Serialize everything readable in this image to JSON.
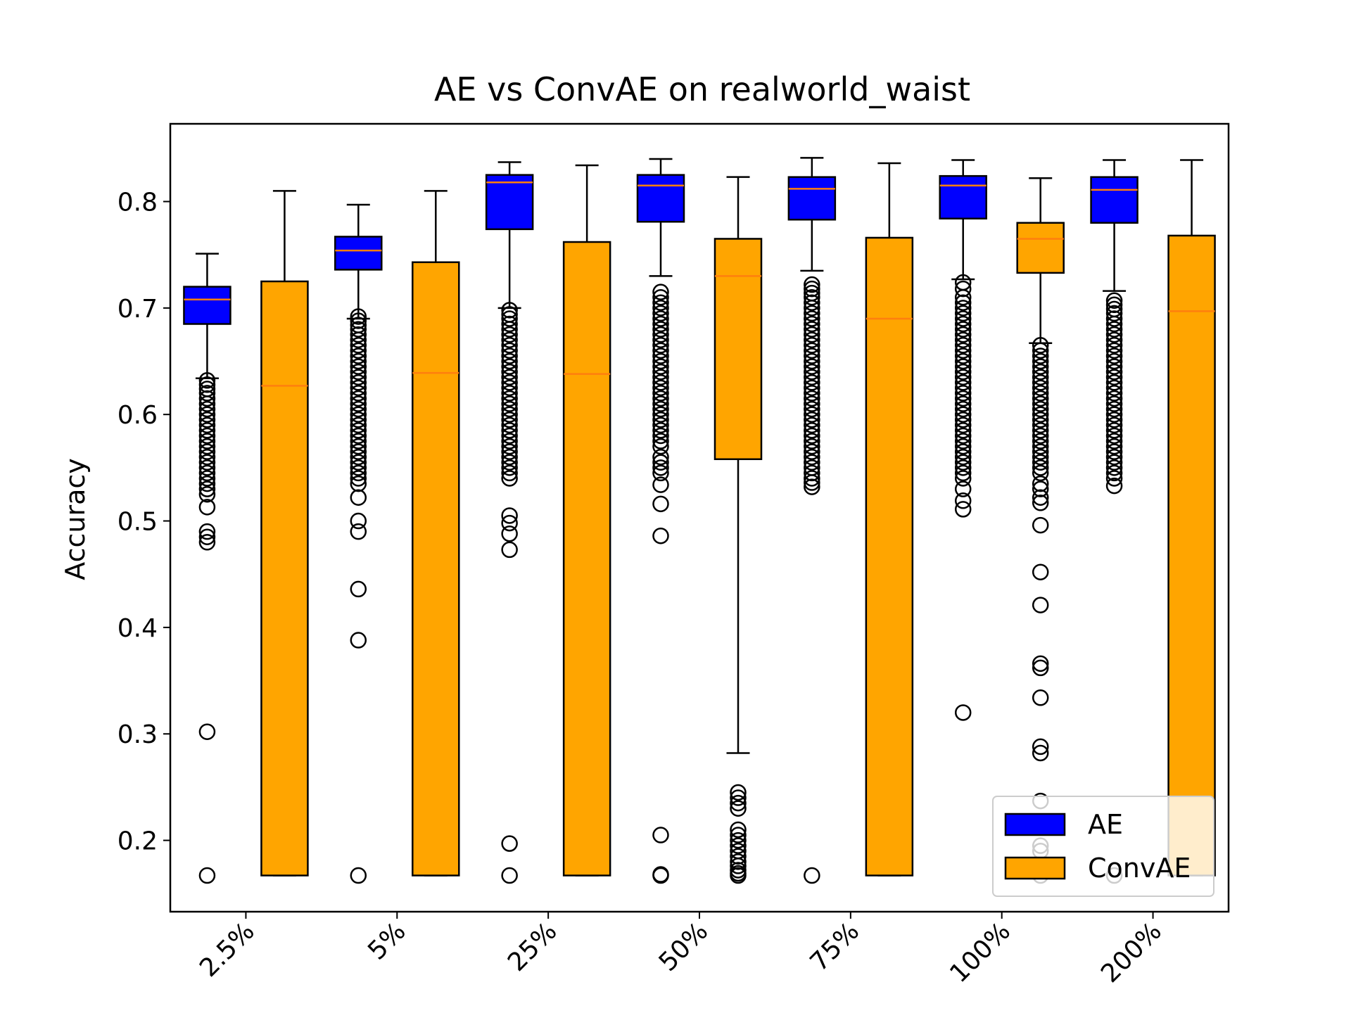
{
  "chart_data": {
    "type": "box",
    "title": "AE vs ConvAE on realworld_waist",
    "xlabel": "",
    "ylabel": "Accuracy",
    "ylim": [
      0.133,
      0.873
    ],
    "yticks": [
      0.2,
      0.3,
      0.4,
      0.5,
      0.6,
      0.7,
      0.8
    ],
    "categories": [
      "2.5%",
      "5%",
      "25%",
      "50%",
      "75%",
      "100%",
      "200%"
    ],
    "legend": {
      "position": "lower right",
      "entries": [
        "AE",
        "ConvAE"
      ]
    },
    "colors": {
      "AE": "#0000ff",
      "ConvAE": "#ffa500",
      "median": "#ff7f0e"
    },
    "series": [
      {
        "name": "AE",
        "boxes": [
          {
            "whislo": 0.634,
            "q1": 0.685,
            "med": 0.708,
            "q3": 0.72,
            "whishi": 0.751,
            "fliers": [
              0.632,
              0.628,
              0.624,
              0.62,
              0.615,
              0.61,
              0.605,
              0.6,
              0.595,
              0.59,
              0.585,
              0.58,
              0.575,
              0.57,
              0.565,
              0.56,
              0.555,
              0.55,
              0.545,
              0.54,
              0.535,
              0.53,
              0.525,
              0.513,
              0.49,
              0.485,
              0.48,
              0.302,
              0.167
            ]
          },
          {
            "whislo": 0.69,
            "q1": 0.736,
            "med": 0.754,
            "q3": 0.767,
            "whishi": 0.797,
            "fliers": [
              0.692,
              0.688,
              0.684,
              0.68,
              0.675,
              0.67,
              0.665,
              0.66,
              0.655,
              0.65,
              0.645,
              0.64,
              0.635,
              0.63,
              0.625,
              0.62,
              0.615,
              0.61,
              0.605,
              0.6,
              0.595,
              0.59,
              0.585,
              0.58,
              0.575,
              0.57,
              0.565,
              0.56,
              0.555,
              0.55,
              0.545,
              0.54,
              0.535,
              0.522,
              0.5,
              0.49,
              0.436,
              0.388,
              0.167
            ]
          },
          {
            "whislo": 0.7,
            "q1": 0.774,
            "med": 0.818,
            "q3": 0.825,
            "whishi": 0.837,
            "fliers": [
              0.698,
              0.694,
              0.69,
              0.685,
              0.68,
              0.675,
              0.67,
              0.665,
              0.66,
              0.655,
              0.65,
              0.645,
              0.64,
              0.635,
              0.63,
              0.625,
              0.62,
              0.615,
              0.61,
              0.605,
              0.6,
              0.595,
              0.59,
              0.585,
              0.58,
              0.575,
              0.57,
              0.565,
              0.56,
              0.555,
              0.55,
              0.545,
              0.54,
              0.505,
              0.498,
              0.488,
              0.473,
              0.197,
              0.167
            ]
          },
          {
            "whislo": 0.73,
            "q1": 0.781,
            "med": 0.815,
            "q3": 0.825,
            "whishi": 0.84,
            "fliers": [
              0.715,
              0.71,
              0.705,
              0.7,
              0.695,
              0.69,
              0.685,
              0.68,
              0.675,
              0.67,
              0.665,
              0.66,
              0.655,
              0.65,
              0.645,
              0.64,
              0.635,
              0.63,
              0.625,
              0.62,
              0.615,
              0.61,
              0.605,
              0.6,
              0.595,
              0.59,
              0.585,
              0.58,
              0.575,
              0.57,
              0.56,
              0.555,
              0.55,
              0.545,
              0.534,
              0.516,
              0.486,
              0.205,
              0.168,
              0.167
            ]
          },
          {
            "whislo": 0.735,
            "q1": 0.783,
            "med": 0.812,
            "q3": 0.823,
            "whishi": 0.841,
            "fliers": [
              0.722,
              0.718,
              0.714,
              0.71,
              0.705,
              0.7,
              0.695,
              0.69,
              0.685,
              0.68,
              0.675,
              0.67,
              0.665,
              0.66,
              0.655,
              0.65,
              0.645,
              0.64,
              0.635,
              0.63,
              0.625,
              0.62,
              0.615,
              0.61,
              0.605,
              0.6,
              0.595,
              0.59,
              0.585,
              0.58,
              0.575,
              0.57,
              0.565,
              0.56,
              0.555,
              0.55,
              0.545,
              0.54,
              0.536,
              0.532,
              0.167
            ]
          },
          {
            "whislo": 0.727,
            "q1": 0.784,
            "med": 0.815,
            "q3": 0.824,
            "whishi": 0.839,
            "fliers": [
              0.724,
              0.718,
              0.71,
              0.705,
              0.7,
              0.695,
              0.69,
              0.685,
              0.68,
              0.675,
              0.67,
              0.665,
              0.66,
              0.655,
              0.65,
              0.645,
              0.64,
              0.635,
              0.63,
              0.625,
              0.62,
              0.615,
              0.61,
              0.605,
              0.6,
              0.595,
              0.59,
              0.585,
              0.58,
              0.575,
              0.57,
              0.565,
              0.56,
              0.555,
              0.55,
              0.545,
              0.54,
              0.53,
              0.519,
              0.511,
              0.32
            ]
          },
          {
            "whislo": 0.716,
            "q1": 0.78,
            "med": 0.811,
            "q3": 0.823,
            "whishi": 0.839,
            "fliers": [
              0.707,
              0.703,
              0.699,
              0.695,
              0.69,
              0.685,
              0.68,
              0.675,
              0.67,
              0.665,
              0.66,
              0.655,
              0.65,
              0.645,
              0.64,
              0.635,
              0.63,
              0.625,
              0.62,
              0.615,
              0.61,
              0.605,
              0.6,
              0.595,
              0.59,
              0.585,
              0.58,
              0.575,
              0.57,
              0.565,
              0.56,
              0.555,
              0.55,
              0.545,
              0.54,
              0.533,
              0.167
            ]
          }
        ]
      },
      {
        "name": "ConvAE",
        "boxes": [
          {
            "whislo": 0.167,
            "q1": 0.167,
            "med": 0.627,
            "q3": 0.725,
            "whishi": 0.81,
            "fliers": []
          },
          {
            "whislo": 0.167,
            "q1": 0.167,
            "med": 0.639,
            "q3": 0.743,
            "whishi": 0.81,
            "fliers": []
          },
          {
            "whislo": 0.167,
            "q1": 0.167,
            "med": 0.638,
            "q3": 0.762,
            "whishi": 0.834,
            "fliers": []
          },
          {
            "whislo": 0.282,
            "q1": 0.558,
            "med": 0.73,
            "q3": 0.765,
            "whishi": 0.823,
            "fliers": [
              0.245,
              0.24,
              0.235,
              0.23,
              0.21,
              0.205,
              0.2,
              0.195,
              0.19,
              0.185,
              0.18,
              0.176,
              0.172,
              0.169,
              0.167
            ]
          },
          {
            "whislo": 0.167,
            "q1": 0.167,
            "med": 0.69,
            "q3": 0.766,
            "whishi": 0.836,
            "fliers": []
          },
          {
            "whislo": 0.667,
            "q1": 0.733,
            "med": 0.765,
            "q3": 0.78,
            "whishi": 0.822,
            "fliers": [
              0.665,
              0.66,
              0.655,
              0.65,
              0.645,
              0.64,
              0.635,
              0.63,
              0.625,
              0.62,
              0.615,
              0.61,
              0.605,
              0.6,
              0.595,
              0.59,
              0.585,
              0.58,
              0.575,
              0.57,
              0.565,
              0.56,
              0.555,
              0.55,
              0.545,
              0.535,
              0.53,
              0.522,
              0.517,
              0.496,
              0.452,
              0.421,
              0.366,
              0.362,
              0.334,
              0.288,
              0.282,
              0.237,
              0.195,
              0.19,
              0.167
            ]
          },
          {
            "whislo": 0.167,
            "q1": 0.167,
            "med": 0.697,
            "q3": 0.768,
            "whishi": 0.839,
            "fliers": []
          }
        ]
      }
    ]
  }
}
